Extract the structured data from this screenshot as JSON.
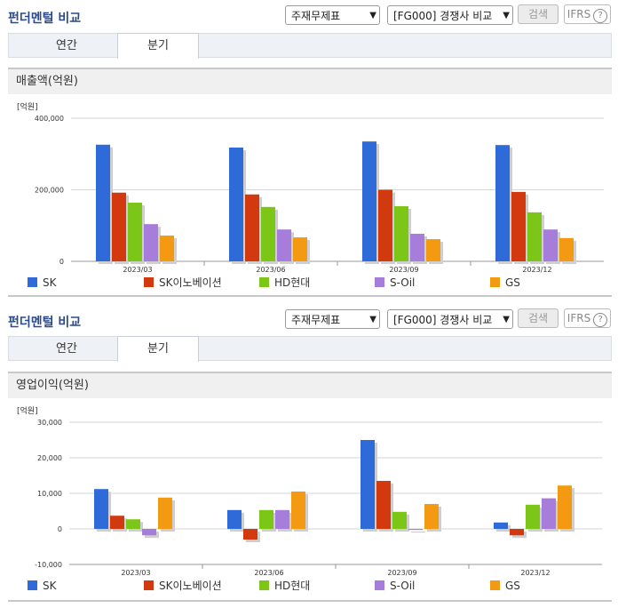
{
  "header": {
    "title": "펀더멘털 비교",
    "select1": "주재무제표",
    "select2": "[FG000] 경쟁사 비교",
    "search_label": "검색",
    "ifrs_label": "IFRS",
    "help_label": "?"
  },
  "tabs": [
    "연간",
    "분기"
  ],
  "active_tab": "분기",
  "colors": {
    "SK": "#2e6ad8",
    "SK이노베이션": "#d2390e",
    "HD현대": "#7cc618",
    "S-Oil": "#a77ddb",
    "GS": "#f49a12"
  },
  "chart_data": [
    {
      "type": "bar",
      "title": "매출액(억원)",
      "unit": "[억원]",
      "categories": [
        "2023/03",
        "2023/06",
        "2023/09",
        "2023/12"
      ],
      "ylim": [
        0,
        400000
      ],
      "yticks": [
        0,
        200000,
        400000
      ],
      "ytick_labels": [
        "0",
        "200,000",
        "400,000"
      ],
      "series": [
        {
          "name": "SK",
          "values": [
            326000,
            318000,
            335000,
            325000
          ]
        },
        {
          "name": "SK이노베이션",
          "values": [
            192000,
            187000,
            200000,
            194000
          ]
        },
        {
          "name": "HD현대",
          "values": [
            164000,
            152000,
            154000,
            137000
          ]
        },
        {
          "name": "S-Oil",
          "values": [
            104000,
            89000,
            77000,
            89000
          ]
        },
        {
          "name": "GS",
          "values": [
            72000,
            67000,
            62000,
            65000
          ]
        }
      ]
    },
    {
      "type": "bar",
      "title": "영업이익(억원)",
      "unit": "[억원]",
      "categories": [
        "2023/03",
        "2023/06",
        "2023/09",
        "2023/12"
      ],
      "ylim": [
        -10000,
        30000
      ],
      "yticks": [
        -10000,
        0,
        10000,
        20000,
        30000
      ],
      "ytick_labels": [
        "-10,000",
        "0",
        "10,000",
        "20,000",
        "30,000"
      ],
      "series": [
        {
          "name": "SK",
          "values": [
            11200,
            5300,
            25000,
            1800
          ]
        },
        {
          "name": "SK이노베이션",
          "values": [
            3700,
            -3000,
            13500,
            -1800
          ]
        },
        {
          "name": "HD현대",
          "values": [
            2700,
            5300,
            4800,
            6800
          ]
        },
        {
          "name": "S-Oil",
          "values": [
            -1800,
            5300,
            -300,
            8600
          ]
        },
        {
          "name": "GS",
          "values": [
            8800,
            10500,
            7000,
            12200
          ]
        }
      ]
    }
  ]
}
